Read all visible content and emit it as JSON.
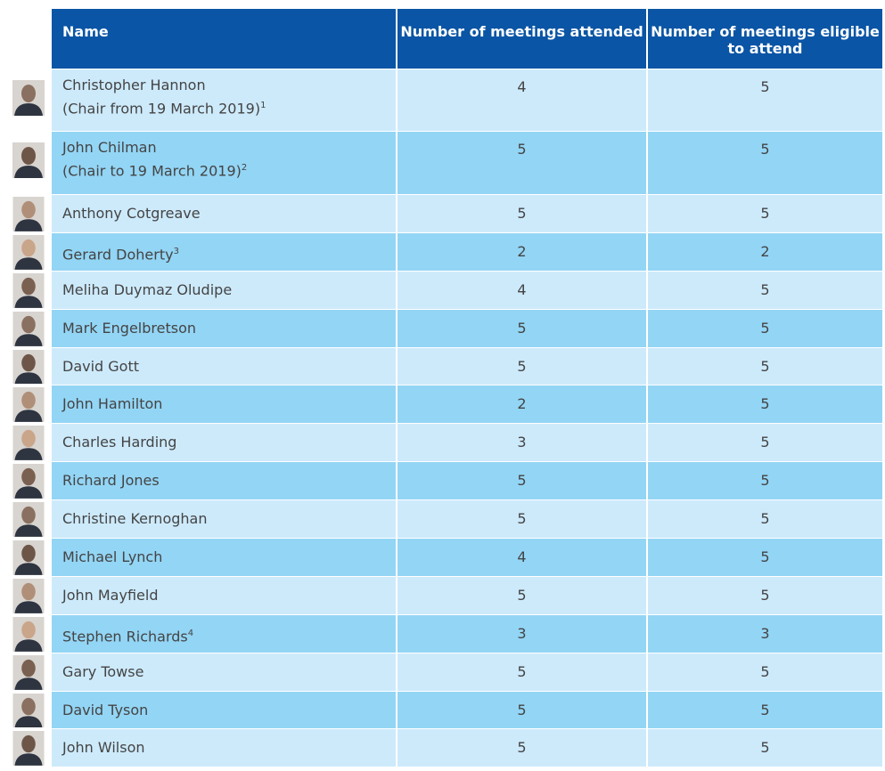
{
  "table": {
    "header": [
      "Name",
      "Number of meetings attended",
      "Number of meetings eligible to attend"
    ],
    "rows": [
      {
        "name": "Christopher Hannon",
        "note": "(Chair from 19 March 2019)",
        "footnote": "1",
        "attended": 4,
        "eligible": 5
      },
      {
        "name": "John Chilman",
        "note": "(Chair to 19 March 2019)",
        "footnote": "2",
        "attended": 5,
        "eligible": 5
      },
      {
        "name": "Anthony Cotgreave",
        "attended": 5,
        "eligible": 5
      },
      {
        "name": "Gerard Doherty",
        "footnote": "3",
        "attended": 2,
        "eligible": 2
      },
      {
        "name": "Meliha Duymaz Oludipe",
        "attended": 4,
        "eligible": 5
      },
      {
        "name": "Mark Engelbretson",
        "attended": 5,
        "eligible": 5
      },
      {
        "name": "David Gott",
        "attended": 5,
        "eligible": 5
      },
      {
        "name": "John Hamilton",
        "attended": 2,
        "eligible": 5
      },
      {
        "name": "Charles Harding",
        "attended": 3,
        "eligible": 5
      },
      {
        "name": "Richard Jones",
        "attended": 5,
        "eligible": 5
      },
      {
        "name": "Christine Kernoghan",
        "attended": 5,
        "eligible": 5
      },
      {
        "name": "Michael Lynch",
        "attended": 4,
        "eligible": 5
      },
      {
        "name": "John Mayfield",
        "attended": 5,
        "eligible": 5
      },
      {
        "name": "Stephen Richards",
        "footnote": "4",
        "attended": 3,
        "eligible": 3
      },
      {
        "name": "Gary Towse",
        "attended": 5,
        "eligible": 5
      },
      {
        "name": "David Tyson",
        "attended": 5,
        "eligible": 5
      },
      {
        "name": "John Wilson",
        "attended": 5,
        "eligible": 5
      }
    ]
  }
}
